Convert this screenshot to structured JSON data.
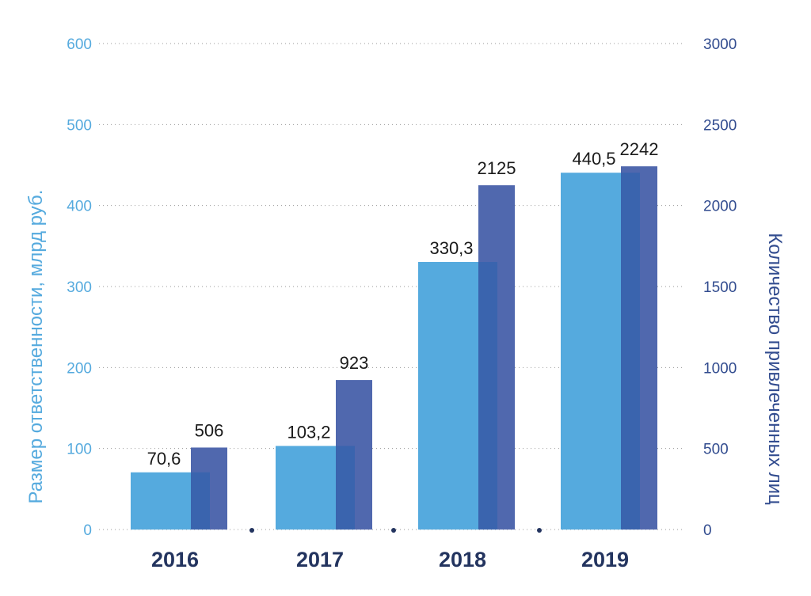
{
  "chart_data": {
    "type": "bar",
    "categories": [
      "2016",
      "2017",
      "2018",
      "2019"
    ],
    "series": [
      {
        "axis": "left",
        "values": [
          70.6,
          103.2,
          330.3,
          440.5
        ],
        "labels": [
          "70,6",
          "103,2",
          "330,3",
          "440,5"
        ],
        "color": "#55aade"
      },
      {
        "axis": "right",
        "values": [
          506,
          923,
          2125,
          2242
        ],
        "labels": [
          "506",
          "923",
          "2125",
          "2242"
        ],
        "color": "#5068ae"
      }
    ],
    "ylabel": "Размер ответственности, млрд руб.",
    "y2label": "Количество привлеченных лиц",
    "ylim": [
      0,
      600
    ],
    "y2lim": [
      0,
      3000
    ],
    "yticks": [
      "0",
      "100",
      "200",
      "300",
      "400",
      "500",
      "600"
    ],
    "y2ticks": [
      "0",
      "500",
      "1000",
      "1500",
      "2000",
      "2500",
      "3000"
    ],
    "grid": true,
    "colors": {
      "left_axis": "#55aade",
      "right_axis": "#324c8f",
      "category_labels": "#23345f",
      "overlap": "#3a64ae"
    }
  }
}
